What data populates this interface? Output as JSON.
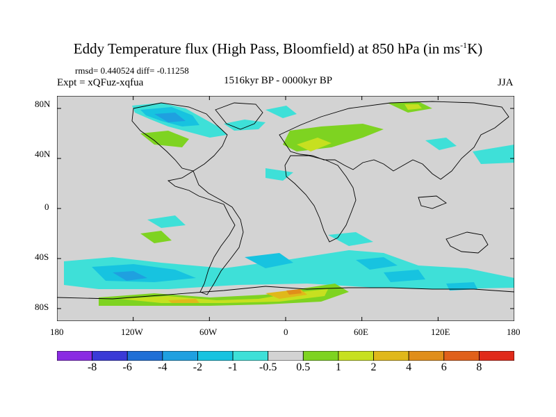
{
  "title": {
    "main": "Eddy Temperature flux (High Pass, Bloomfield) at 850 hPa (in ms",
    "sup": "-1",
    "tail": "K)"
  },
  "stats": "rmsd= 0.440524 diff= -0.11258",
  "expt": "Expt = xQFuz-xqfua",
  "period": "1516kyr BP - 0000kyr BP",
  "season": "JJA",
  "axes": {
    "x_ticks": [
      "180",
      "120W",
      "60W",
      "0",
      "60E",
      "120E",
      "180"
    ],
    "y_ticks": [
      "80N",
      "40N",
      "0",
      "40S",
      "80S"
    ]
  },
  "colorbar": {
    "labels": [
      "-8",
      "-6",
      "-4",
      "-2",
      "-1",
      "-0.5",
      "0.5",
      "1",
      "2",
      "4",
      "6",
      "8"
    ],
    "colors": [
      "#8a2be2",
      "#3a3ad6",
      "#1f6fd6",
      "#1fa0e0",
      "#17c3e0",
      "#3ee0d8",
      "#d3d3d3",
      "#7ed321",
      "#c7e020",
      "#e0b81a",
      "#e08e1a",
      "#e0601a",
      "#e02a1a"
    ]
  },
  "chart_data": {
    "type": "heatmap",
    "projection": "cylindrical-equidistant",
    "xlim": [
      -180,
      180
    ],
    "ylim": [
      -90,
      90
    ],
    "units": "ms-1K",
    "features": [
      {
        "region": "Canadian Arctic / Baffin Bay",
        "sign": "negative",
        "level": "-1 to -2"
      },
      {
        "region": "Greenland south coast",
        "sign": "negative",
        "level": "-0.5 to -1"
      },
      {
        "region": "Labrador / Great Lakes",
        "sign": "positive",
        "level": "0.5 to 1"
      },
      {
        "region": "Europe / Iberia",
        "sign": "positive",
        "level": "0.5 to 1"
      },
      {
        "region": "Western Siberia",
        "sign": "positive",
        "level": "0.5 to 1"
      },
      {
        "region": "Southern Ocean 40-70S",
        "sign": "negative",
        "level": "-0.5 to -2"
      },
      {
        "region": "Antarctic coast 70-80S",
        "sign": "positive",
        "level": "0.5 to 4"
      }
    ]
  }
}
